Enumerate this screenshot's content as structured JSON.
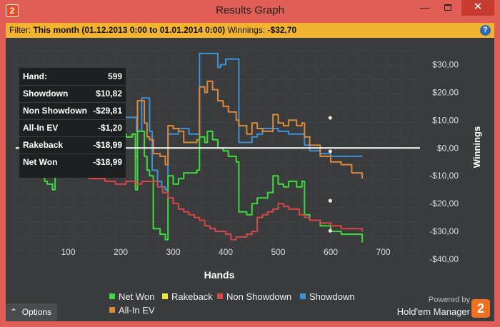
{
  "window": {
    "title": "Results Graph",
    "app_icon": "2",
    "minimize_glyph": "—",
    "close_glyph": "✕"
  },
  "filter": {
    "label": "Filter:",
    "value": "This month (01.12.2013 0:00 to 01.01.2014 0:00)",
    "winnings_label": "Winnings:",
    "winnings_value": "-$32,70",
    "help_glyph": "?"
  },
  "infobox": [
    {
      "label": "Hand:",
      "value": "599"
    },
    {
      "label": "Showdown",
      "value": "$10,82"
    },
    {
      "label": "Non Showdown",
      "value": "-$29,81"
    },
    {
      "label": "All-In EV",
      "value": "-$1,20"
    },
    {
      "label": "Rakeback",
      "value": "-$18,99"
    },
    {
      "label": "Net Won",
      "value": "-$18,99"
    }
  ],
  "options_label": "Options",
  "powered_by": "Powered by",
  "brand": "Hold'em Manager",
  "brand_logo": "2",
  "colors": {
    "net_won": "#3ddc3d",
    "rakeback": "#e8e83a",
    "non_showdown": "#d8464a",
    "showdown": "#3d92d6",
    "all_in_ev": "#dd8a3a",
    "background": "#3a3b3d",
    "filter_bar": "#f1b330"
  },
  "chart_data": {
    "type": "line",
    "xlabel": "Hands",
    "ylabel": "Winnings",
    "xlim": [
      0,
      770
    ],
    "ylim": [
      -40,
      35
    ],
    "xticks": [
      {
        "value": 100,
        "label": "100"
      },
      {
        "value": 200,
        "label": "200"
      },
      {
        "value": 300,
        "label": "300"
      },
      {
        "value": 400,
        "label": "400"
      },
      {
        "value": 500,
        "label": "500"
      },
      {
        "value": 600,
        "label": "600"
      },
      {
        "value": 700,
        "label": "700"
      }
    ],
    "yticks": [
      {
        "value": 30,
        "label": "$30,00"
      },
      {
        "value": 20,
        "label": "$20,00"
      },
      {
        "value": 10,
        "label": "$10,00"
      },
      {
        "value": 0,
        "label": "$0,00"
      },
      {
        "value": -10,
        "label": "-$10,00"
      },
      {
        "value": -20,
        "label": "-$20,00"
      },
      {
        "value": -30,
        "label": "-$30,00"
      },
      {
        "value": -40,
        "label": "-$40,00"
      }
    ],
    "grid": true,
    "zero_line": true,
    "cursor_hand": 599,
    "legend_position": "bottom-center",
    "legend": [
      {
        "name": "Net Won",
        "color": "#3ddc3d"
      },
      {
        "name": "Rakeback",
        "color": "#e8e83a"
      },
      {
        "name": "Non Showdown",
        "color": "#d8464a"
      },
      {
        "name": "Showdown",
        "color": "#3d92d6"
      },
      {
        "name": "All-In EV",
        "color": "#dd8a3a"
      }
    ],
    "series": [
      {
        "name": "Showdown",
        "color": "#3d92d6",
        "points": [
          [
            0,
            0
          ],
          [
            40,
            0
          ],
          [
            60,
            0
          ],
          [
            70,
            -4
          ],
          [
            80,
            -5
          ],
          [
            85,
            0
          ],
          [
            100,
            0
          ],
          [
            110,
            8
          ],
          [
            120,
            8
          ],
          [
            130,
            9
          ],
          [
            150,
            9
          ],
          [
            170,
            9
          ],
          [
            190,
            11
          ],
          [
            210,
            11
          ],
          [
            230,
            6
          ],
          [
            240,
            18
          ],
          [
            250,
            18
          ],
          [
            255,
            6
          ],
          [
            260,
            -8
          ],
          [
            270,
            -12
          ],
          [
            278,
            -14
          ],
          [
            285,
            -15
          ],
          [
            290,
            5
          ],
          [
            300,
            5
          ],
          [
            310,
            7
          ],
          [
            320,
            7
          ],
          [
            330,
            5
          ],
          [
            345,
            5
          ],
          [
            350,
            34
          ],
          [
            360,
            34
          ],
          [
            375,
            34
          ],
          [
            385,
            29
          ],
          [
            390,
            30
          ],
          [
            400,
            32
          ],
          [
            420,
            32
          ],
          [
            425,
            2
          ],
          [
            440,
            2
          ],
          [
            450,
            4
          ],
          [
            460,
            5
          ],
          [
            470,
            7
          ],
          [
            480,
            7
          ],
          [
            500,
            6
          ],
          [
            520,
            5
          ],
          [
            540,
            5
          ],
          [
            550,
            1
          ],
          [
            560,
            -1
          ],
          [
            580,
            -2
          ],
          [
            600,
            -3
          ],
          [
            620,
            -3
          ],
          [
            640,
            -3
          ],
          [
            660,
            -3
          ]
        ]
      },
      {
        "name": "All-In EV",
        "color": "#dd8a3a",
        "points": [
          [
            0,
            0
          ],
          [
            10,
            3
          ],
          [
            20,
            2
          ],
          [
            30,
            1
          ],
          [
            40,
            0
          ],
          [
            60,
            0
          ],
          [
            80,
            0
          ],
          [
            100,
            0
          ],
          [
            110,
            2
          ],
          [
            130,
            3
          ],
          [
            150,
            3
          ],
          [
            170,
            4
          ],
          [
            190,
            5
          ],
          [
            210,
            4
          ],
          [
            222,
            5
          ],
          [
            228,
            -3
          ],
          [
            232,
            17
          ],
          [
            240,
            17
          ],
          [
            245,
            9
          ],
          [
            250,
            4
          ],
          [
            255,
            3
          ],
          [
            262,
            -2
          ],
          [
            275,
            -3
          ],
          [
            285,
            -6
          ],
          [
            290,
            8
          ],
          [
            300,
            7
          ],
          [
            310,
            6
          ],
          [
            320,
            2
          ],
          [
            330,
            2
          ],
          [
            345,
            3
          ],
          [
            350,
            22
          ],
          [
            360,
            20
          ],
          [
            365,
            24
          ],
          [
            375,
            21
          ],
          [
            385,
            17
          ],
          [
            395,
            15
          ],
          [
            405,
            13
          ],
          [
            420,
            10
          ],
          [
            425,
            8
          ],
          [
            440,
            5
          ],
          [
            450,
            9
          ],
          [
            460,
            7
          ],
          [
            470,
            6
          ],
          [
            480,
            6
          ],
          [
            490,
            12
          ],
          [
            500,
            9
          ],
          [
            510,
            8
          ],
          [
            520,
            10
          ],
          [
            535,
            8
          ],
          [
            545,
            9
          ],
          [
            550,
            4
          ],
          [
            560,
            1
          ],
          [
            580,
            -3
          ],
          [
            600,
            -5
          ],
          [
            620,
            -6
          ],
          [
            640,
            -9
          ],
          [
            660,
            -11
          ]
        ]
      },
      {
        "name": "Net Won",
        "color": "#3ddc3d",
        "points": [
          [
            0,
            0
          ],
          [
            10,
            3
          ],
          [
            20,
            0
          ],
          [
            30,
            -3
          ],
          [
            40,
            -8
          ],
          [
            50,
            -8
          ],
          [
            55,
            -12
          ],
          [
            60,
            -13
          ],
          [
            70,
            -15
          ],
          [
            75,
            2
          ],
          [
            80,
            1
          ],
          [
            90,
            0
          ],
          [
            100,
            -1
          ],
          [
            110,
            0
          ],
          [
            120,
            -3
          ],
          [
            130,
            -3
          ],
          [
            140,
            -4
          ],
          [
            150,
            -2
          ],
          [
            170,
            1
          ],
          [
            190,
            5
          ],
          [
            210,
            4
          ],
          [
            222,
            5
          ],
          [
            228,
            -15
          ],
          [
            232,
            6
          ],
          [
            240,
            6
          ],
          [
            245,
            -3
          ],
          [
            250,
            -8
          ],
          [
            255,
            -10
          ],
          [
            262,
            -29
          ],
          [
            275,
            -31
          ],
          [
            285,
            -33
          ],
          [
            290,
            -10
          ],
          [
            300,
            -13
          ],
          [
            310,
            -11
          ],
          [
            320,
            -9
          ],
          [
            330,
            -9
          ],
          [
            345,
            -8
          ],
          [
            350,
            4
          ],
          [
            360,
            2
          ],
          [
            365,
            6
          ],
          [
            375,
            3
          ],
          [
            385,
            0
          ],
          [
            395,
            -1
          ],
          [
            405,
            -3
          ],
          [
            420,
            -5
          ],
          [
            425,
            -23
          ],
          [
            440,
            -24
          ],
          [
            450,
            -20
          ],
          [
            460,
            -18
          ],
          [
            470,
            -18
          ],
          [
            480,
            -16
          ],
          [
            490,
            -10
          ],
          [
            500,
            -13
          ],
          [
            510,
            -14
          ],
          [
            520,
            -12
          ],
          [
            535,
            -14
          ],
          [
            545,
            -12
          ],
          [
            550,
            -24
          ],
          [
            560,
            -26
          ],
          [
            580,
            -28
          ],
          [
            600,
            -30
          ],
          [
            620,
            -31
          ],
          [
            640,
            -31
          ],
          [
            660,
            -34
          ]
        ]
      },
      {
        "name": "Non Showdown",
        "color": "#d8464a",
        "points": [
          [
            0,
            0
          ],
          [
            10,
            -1
          ],
          [
            20,
            -2
          ],
          [
            30,
            -3
          ],
          [
            40,
            -5
          ],
          [
            50,
            -5
          ],
          [
            60,
            -6
          ],
          [
            70,
            -7
          ],
          [
            80,
            -7
          ],
          [
            90,
            -8
          ],
          [
            100,
            -9
          ],
          [
            110,
            -9
          ],
          [
            120,
            -10
          ],
          [
            130,
            -10
          ],
          [
            140,
            -11
          ],
          [
            150,
            -11
          ],
          [
            160,
            -11
          ],
          [
            170,
            -12
          ],
          [
            180,
            -12
          ],
          [
            190,
            -13
          ],
          [
            200,
            -13
          ],
          [
            210,
            -12
          ],
          [
            220,
            -12
          ],
          [
            230,
            -13
          ],
          [
            240,
            -12
          ],
          [
            250,
            -12
          ],
          [
            260,
            -12
          ],
          [
            270,
            -14
          ],
          [
            280,
            -16
          ],
          [
            290,
            -18
          ],
          [
            300,
            -20
          ],
          [
            310,
            -22
          ],
          [
            320,
            -23
          ],
          [
            330,
            -24
          ],
          [
            340,
            -25
          ],
          [
            350,
            -26
          ],
          [
            360,
            -28
          ],
          [
            370,
            -29
          ],
          [
            380,
            -30
          ],
          [
            390,
            -30
          ],
          [
            400,
            -31
          ],
          [
            410,
            -33
          ],
          [
            420,
            -32
          ],
          [
            430,
            -32
          ],
          [
            440,
            -31
          ],
          [
            450,
            -30
          ],
          [
            460,
            -25
          ],
          [
            470,
            -24
          ],
          [
            480,
            -23
          ],
          [
            490,
            -22
          ],
          [
            500,
            -20
          ],
          [
            510,
            -21
          ],
          [
            520,
            -22
          ],
          [
            530,
            -22
          ],
          [
            540,
            -24
          ],
          [
            550,
            -25
          ],
          [
            560,
            -26
          ],
          [
            580,
            -27
          ],
          [
            600,
            -28
          ],
          [
            620,
            -29
          ],
          [
            640,
            -29
          ],
          [
            660,
            -30
          ]
        ]
      }
    ]
  }
}
